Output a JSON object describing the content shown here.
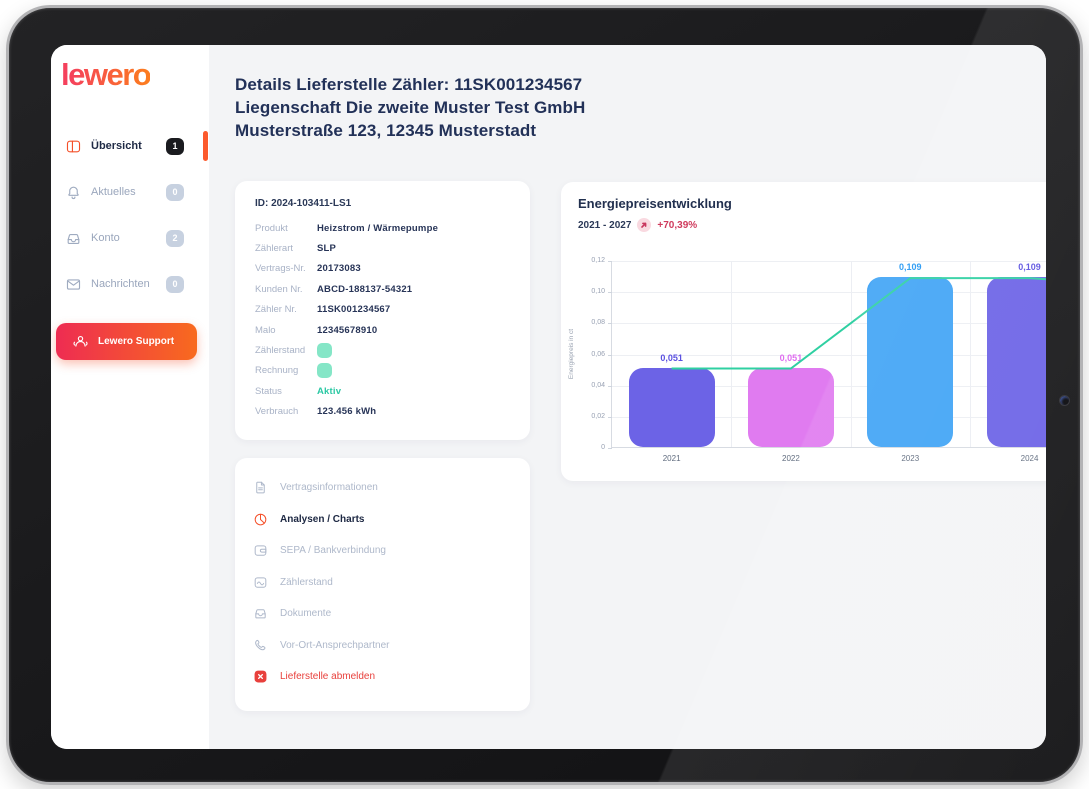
{
  "sidebar": {
    "logo": "lewero",
    "items": [
      {
        "label": "Übersicht",
        "badge": "1",
        "icon": "dashboard-icon",
        "active": true
      },
      {
        "label": "Aktuelles",
        "badge": "0",
        "icon": "bell-icon",
        "active": false
      },
      {
        "label": "Konto",
        "badge": "2",
        "icon": "inbox-icon",
        "active": false
      },
      {
        "label": "Nachrichten",
        "badge": "0",
        "icon": "mail-icon",
        "active": false
      }
    ],
    "support_button": "Lewero Support"
  },
  "header": {
    "line1": "Details Lieferstelle Zähler: 11SK001234567",
    "line2": "Liegenschaft Die zweite Muster Test GmbH",
    "line3": "Musterstraße 123, 12345 Musterstadt"
  },
  "details": {
    "id": "ID: 2024-103411-LS1",
    "rows": [
      {
        "label": "Produkt",
        "value": "Heizstrom / Wärmepumpe",
        "type": "text"
      },
      {
        "label": "Zählerart",
        "value": "SLP",
        "type": "text"
      },
      {
        "label": "Vertrags-Nr.",
        "value": "20173083",
        "type": "text"
      },
      {
        "label": "Kunden Nr.",
        "value": "ABCD-188137-54321",
        "type": "text"
      },
      {
        "label": "Zähler Nr.",
        "value": "11SK001234567",
        "type": "text"
      },
      {
        "label": "Malo",
        "value": "12345678910",
        "type": "text"
      },
      {
        "label": "Zählerstand",
        "value": "",
        "type": "toggle"
      },
      {
        "label": "Rechnung",
        "value": "",
        "type": "toggle"
      },
      {
        "label": "Status",
        "value": "Aktiv",
        "type": "status"
      },
      {
        "label": "Verbrauch",
        "value": "123.456 kWh",
        "type": "text"
      }
    ]
  },
  "menu": {
    "items": [
      {
        "label": "Vertragsinformationen",
        "icon": "document-icon",
        "state": "default"
      },
      {
        "label": "Analysen / Charts",
        "icon": "pie-chart-icon",
        "state": "active"
      },
      {
        "label": "SEPA / Bankverbindung",
        "icon": "bank-card-icon",
        "state": "default"
      },
      {
        "label": "Zählerstand",
        "icon": "meter-chart-icon",
        "state": "default"
      },
      {
        "label": "Dokumente",
        "icon": "documents-inbox-icon",
        "state": "default"
      },
      {
        "label": "Vor-Ort-Ansprechpartner",
        "icon": "phone-icon",
        "state": "default"
      },
      {
        "label": "Lieferstelle abmelden",
        "icon": "close-badge-icon",
        "state": "danger"
      }
    ]
  },
  "chart_data": {
    "type": "bar",
    "title": "Energiepreisentwicklung",
    "subtitle_range": "2021 - 2027",
    "trend_badge": "+70,39%",
    "categories": [
      "2021",
      "2022",
      "2023",
      "2024"
    ],
    "values": [
      0.051,
      0.051,
      0.109,
      0.109
    ],
    "value_labels": [
      "0,051",
      "0,051",
      "0,109",
      "0,109"
    ],
    "bar_colors": [
      "#6c63e6",
      "#e07bf0",
      "#41a4f5",
      "#6c63e6"
    ],
    "label_colors": [
      "#5b51e0",
      "#df6ef0",
      "#2196f3",
      "#5b51e0"
    ],
    "line_color": "#2fd0a2",
    "ylabel": "Energiepreis in ct",
    "yticks": [
      "0",
      "0,02",
      "0,04",
      "0,06",
      "0,08",
      "0,10",
      "0,12"
    ],
    "ylim": [
      0,
      0.12
    ],
    "legend": "none",
    "grid": "on"
  },
  "colors": {
    "accent_orange": "#fc5a2d",
    "gradient_red": "#ee2c52",
    "gradient_orange": "#f86a1e",
    "status_green": "#2bc8a4",
    "danger_red": "#e8403c",
    "navy_text": "#223158"
  }
}
